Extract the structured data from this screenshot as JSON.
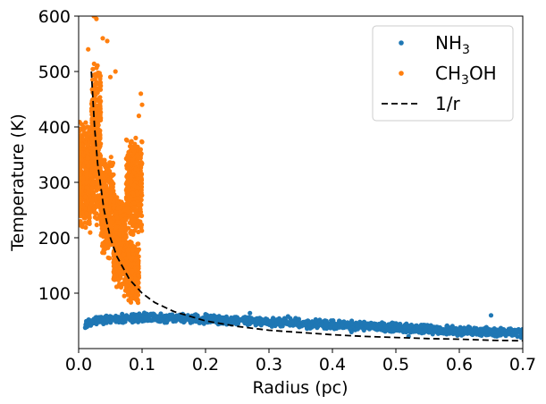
{
  "chart_data": {
    "type": "scatter",
    "xlabel": "Radius (pc)",
    "ylabel": "Temperature (K)",
    "xlim": [
      0.0,
      0.7
    ],
    "ylim": [
      0,
      600
    ],
    "x_ticks": [
      0.0,
      0.1,
      0.2,
      0.3,
      0.4,
      0.5,
      0.6,
      0.7
    ],
    "x_tick_labels": [
      "0.0",
      "0.1",
      "0.2",
      "0.3",
      "0.4",
      "0.5",
      "0.6",
      "0.7"
    ],
    "y_ticks": [
      100,
      200,
      300,
      400,
      500,
      600
    ],
    "y_tick_labels": [
      "100",
      "200",
      "300",
      "400",
      "500",
      "600"
    ],
    "grid": false,
    "legend_position": "top-right",
    "legend": [
      {
        "label_main": "NH",
        "label_sub": "3",
        "label_tail": "",
        "marker": "point",
        "color": "#1f77b4"
      },
      {
        "label_main": "CH",
        "label_sub": "3",
        "label_tail": "OH",
        "marker": "point",
        "color": "#ff7f0e"
      },
      {
        "label_main": "1/r",
        "label_sub": "",
        "label_tail": "",
        "marker": "dashed-line",
        "color": "#000000"
      }
    ],
    "series": [
      {
        "name": "NH3",
        "color": "#1f77b4",
        "kind": "scatter",
        "trend": [
          [
            0.01,
            46
          ],
          [
            0.05,
            54
          ],
          [
            0.1,
            56
          ],
          [
            0.15,
            55
          ],
          [
            0.2,
            53
          ],
          [
            0.25,
            51
          ],
          [
            0.3,
            48
          ],
          [
            0.35,
            46
          ],
          [
            0.4,
            43
          ],
          [
            0.45,
            41
          ],
          [
            0.5,
            38
          ],
          [
            0.55,
            35
          ],
          [
            0.6,
            32
          ],
          [
            0.65,
            30
          ],
          [
            0.7,
            28
          ]
        ],
        "scatter_spread": 9,
        "points": [
          [
            0.013,
            45
          ],
          [
            0.032,
            48
          ],
          [
            0.045,
            51
          ],
          [
            0.06,
            53
          ],
          [
            0.08,
            57
          ],
          [
            0.1,
            60
          ],
          [
            0.12,
            52
          ],
          [
            0.15,
            58
          ],
          [
            0.18,
            50
          ],
          [
            0.2,
            62
          ],
          [
            0.22,
            44
          ],
          [
            0.25,
            55
          ],
          [
            0.27,
            64
          ],
          [
            0.3,
            49
          ],
          [
            0.33,
            58
          ],
          [
            0.36,
            36
          ],
          [
            0.38,
            52
          ],
          [
            0.4,
            45
          ],
          [
            0.43,
            30
          ],
          [
            0.45,
            48
          ],
          [
            0.48,
            33
          ],
          [
            0.5,
            44
          ],
          [
            0.52,
            22
          ],
          [
            0.55,
            40
          ],
          [
            0.58,
            26
          ],
          [
            0.6,
            36
          ],
          [
            0.63,
            30
          ],
          [
            0.65,
            60
          ],
          [
            0.67,
            27
          ],
          [
            0.69,
            33
          ]
        ]
      },
      {
        "name": "CH3OH",
        "color": "#ff7f0e",
        "kind": "scatter",
        "clusters": [
          {
            "x_range": [
              0.0,
              0.02
            ],
            "y_range": [
              200,
              420
            ]
          },
          {
            "x_range": [
              0.02,
              0.035
            ],
            "y_range": [
              220,
              520
            ]
          },
          {
            "x_range": [
              0.035,
              0.055
            ],
            "y_range": [
              160,
              350
            ]
          },
          {
            "x_range": [
              0.055,
              0.075
            ],
            "y_range": [
              100,
              280
            ]
          },
          {
            "x_range": [
              0.075,
              0.095
            ],
            "y_range": [
              75,
              200
            ]
          },
          {
            "x_range": [
              0.075,
              0.1
            ],
            "y_range": [
              200,
              390
            ]
          }
        ],
        "points": [
          [
            0.024,
            600
          ],
          [
            0.028,
            595
          ],
          [
            0.038,
            560
          ],
          [
            0.045,
            555
          ],
          [
            0.015,
            540
          ],
          [
            0.05,
            490
          ],
          [
            0.058,
            500
          ],
          [
            0.098,
            460
          ],
          [
            0.1,
            440
          ],
          [
            0.095,
            420
          ],
          [
            0.09,
            380
          ],
          [
            0.085,
            350
          ],
          [
            0.002,
            330
          ],
          [
            0.008,
            400
          ],
          [
            0.012,
            300
          ],
          [
            0.018,
            250
          ],
          [
            0.03,
            320
          ],
          [
            0.04,
            280
          ],
          [
            0.05,
            230
          ],
          [
            0.06,
            200
          ],
          [
            0.07,
            170
          ],
          [
            0.08,
            130
          ],
          [
            0.09,
            110
          ],
          [
            0.092,
            90
          ],
          [
            0.065,
            140
          ],
          [
            0.072,
            95
          ]
        ]
      },
      {
        "name": "1/r",
        "color": "#000000",
        "kind": "line",
        "style": "dashed",
        "points": [
          [
            0.02,
            500
          ],
          [
            0.025,
            400
          ],
          [
            0.03,
            333
          ],
          [
            0.04,
            250
          ],
          [
            0.05,
            200
          ],
          [
            0.06,
            167
          ],
          [
            0.08,
            125
          ],
          [
            0.1,
            100
          ],
          [
            0.12,
            83
          ],
          [
            0.15,
            67
          ],
          [
            0.2,
            50
          ],
          [
            0.25,
            40
          ],
          [
            0.3,
            33
          ],
          [
            0.35,
            29
          ],
          [
            0.4,
            25
          ],
          [
            0.45,
            22
          ],
          [
            0.5,
            20
          ],
          [
            0.55,
            18
          ],
          [
            0.6,
            17
          ],
          [
            0.65,
            15
          ],
          [
            0.7,
            14
          ]
        ]
      }
    ]
  }
}
